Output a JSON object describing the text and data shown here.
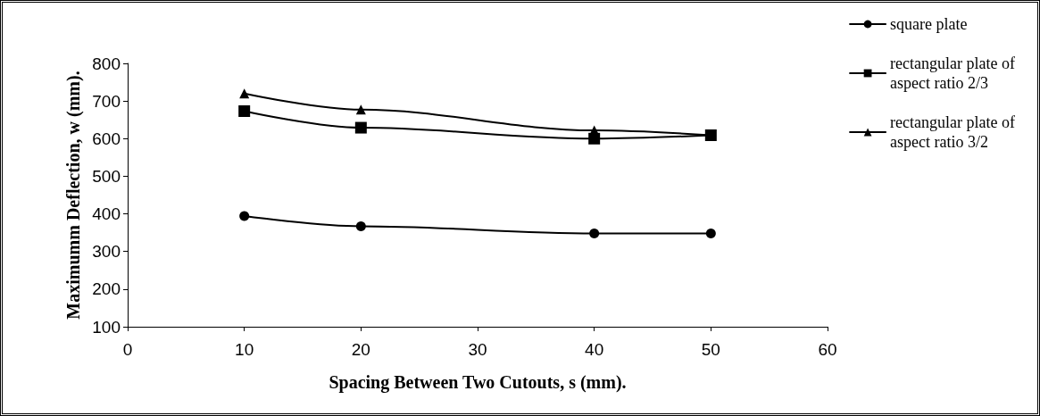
{
  "chart_data": {
    "type": "line",
    "xlabel": "Spacing Between Two Cutouts, s (mm).",
    "ylabel": "Maximumm Deflection, w (mm).",
    "x": [
      10,
      20,
      40,
      50
    ],
    "series": [
      {
        "name": "square plate",
        "color": "#000000",
        "marker": "circle",
        "values": [
          394,
          367,
          348,
          348
        ]
      },
      {
        "name": "rectangular plate of aspect ratio 2/3",
        "color": "#000000",
        "marker": "square",
        "values": [
          673,
          629,
          600,
          609
        ]
      },
      {
        "name": "rectangular plate of aspect ratio 3/2",
        "color": "#000000",
        "marker": "triangle",
        "values": [
          720,
          677,
          622,
          609
        ]
      }
    ],
    "xlim": [
      0,
      60
    ],
    "xticks": [
      0,
      10,
      20,
      30,
      40,
      50,
      60
    ],
    "ylim": [
      100,
      800
    ],
    "yticks": [
      100,
      200,
      300,
      400,
      500,
      600,
      700,
      800
    ],
    "grid": false,
    "legend": "right",
    "line_style": "solid"
  }
}
